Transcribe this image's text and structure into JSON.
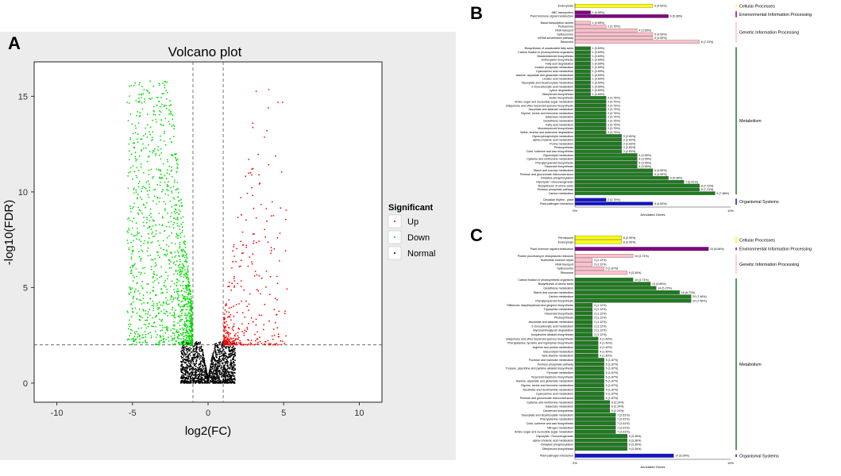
{
  "panels": {
    "a": "A",
    "b": "B",
    "c": "C"
  },
  "chart_data": [
    {
      "type": "scatter",
      "panel": "A",
      "title": "Volcano plot",
      "xlabel": "log2(FC)",
      "ylabel": "-log10(FDR)",
      "xlim": [
        -11.5,
        11.5
      ],
      "ylim": [
        -1,
        16.8
      ],
      "xticks": [
        -10,
        -5,
        0,
        5,
        10
      ],
      "yticks": [
        0,
        5,
        10,
        15
      ],
      "vlines": [
        -1,
        1
      ],
      "hline": 2,
      "legend": {
        "title": "Significant",
        "placement": "right",
        "items": [
          {
            "label": "Up",
            "color": "#ff0000"
          },
          {
            "label": "Down",
            "color": "#00dd00"
          },
          {
            "label": "Normal",
            "color": "#000000"
          }
        ]
      }
    },
    {
      "type": "bar",
      "panel": "B",
      "orientation": "horizontal",
      "xlabel": "Annotated Genes",
      "xticks": [
        "0%",
        "10%"
      ],
      "xmax": 10,
      "groups": [
        {
          "name": "Cellular Processes",
          "color": "#ffff00",
          "bars": [
            {
              "label": "Endocytosis",
              "value": 5,
              "text": "5 (4.59%)"
            }
          ]
        },
        {
          "name": "Environmental Information Processing",
          "color": "#800080",
          "bars": [
            {
              "label": "ABC transporters",
              "value": 1,
              "text": "1 (0.69%)"
            },
            {
              "label": "Plant hormone signal transduction",
              "value": 6,
              "text": "6 (5.38%)"
            }
          ]
        },
        {
          "name": "Genetic Information Processing",
          "color": "#ffc0cb",
          "bars": [
            {
              "label": "Basal transcription factors",
              "value": 1,
              "text": "1 (0.69%)"
            },
            {
              "label": "Proteasome",
              "value": 2,
              "text": "2 (0.75%)"
            },
            {
              "label": "RNA transport",
              "value": 4,
              "text": "4 (3.55%)"
            },
            {
              "label": "Spliceosome",
              "value": 5,
              "text": "5 (4.59%)"
            },
            {
              "label": "mRNA surveillance pathway",
              "value": 5,
              "text": "5 (4.59%)"
            },
            {
              "label": "Ribosome",
              "value": 8,
              "text": "8 (7.23%)"
            }
          ]
        },
        {
          "name": "Metabolism",
          "color": "#1e7b1e",
          "bars": [
            {
              "label": "Biosynthesis of unsaturated fatty acids",
              "value": 1,
              "text": "1 (0.69%)"
            },
            {
              "label": "Carbon fixation in photosynthetic organisms",
              "value": 1,
              "text": "1 (0.69%)"
            },
            {
              "label": "Brassinosteroid biosynthesis",
              "value": 1,
              "text": "1 (0.69%)"
            },
            {
              "label": "Anthocyanin biosynthesis",
              "value": 1,
              "text": "1 (0.69%)"
            },
            {
              "label": "Fatty acid degradation",
              "value": 1,
              "text": "1 (0.69%)"
            },
            {
              "label": "Inositol phosphate metabolism",
              "value": 1,
              "text": "1 (0.69%)"
            },
            {
              "label": "Cyanoamino acid metabolism",
              "value": 1,
              "text": "1 (0.69%)"
            },
            {
              "label": "Alanine, aspartate and glutamate metabolism",
              "value": 1,
              "text": "1 (0.69%)"
            },
            {
              "label": "Linoleic acid metabolism",
              "value": 1,
              "text": "1 (0.69%)"
            },
            {
              "label": "Glyoxylate and dicarboxylate metabolism",
              "value": 1,
              "text": "1 (0.69%)"
            },
            {
              "label": "2-Oxocarboxylic acid metabolism",
              "value": 1,
              "text": "1 (0.69%)"
            },
            {
              "label": "Lysine degradation",
              "value": 1,
              "text": "1 (0.69%)"
            },
            {
              "label": "Diterpenoid biosynthesis",
              "value": 1,
              "text": "1 (0.69%)"
            },
            {
              "label": "Zeatin biosynthesis",
              "value": 2,
              "text": "2 (0.75%)"
            },
            {
              "label": "Amino sugar and nucleotide sugar metabolism",
              "value": 2,
              "text": "2 (0.75%)"
            },
            {
              "label": "Ubiquinone and other terpenoid-quinone biosynthesis",
              "value": 2,
              "text": "2 (0.75%)"
            },
            {
              "label": "Ascorbate and aldarate metabolism",
              "value": 2,
              "text": "2 (0.75%)"
            },
            {
              "label": "Glycine, serine and threonine metabolism",
              "value": 2,
              "text": "2 (0.75%)"
            },
            {
              "label": "Galactose metabolism",
              "value": 2,
              "text": "2 (0.75%)"
            },
            {
              "label": "Glutathione metabolism",
              "value": 2,
              "text": "2 (0.75%)"
            },
            {
              "label": "Fatty acid metabolism",
              "value": 2,
              "text": "2 (0.75%)"
            },
            {
              "label": "Monoterpenoid biosynthesis",
              "value": 2,
              "text": "2 (0.75%)"
            },
            {
              "label": "Valine, leucine and isoleucine degradation",
              "value": 2,
              "text": "2 (0.75%)"
            },
            {
              "label": "Glycerophospholipid metabolism",
              "value": 3,
              "text": "3 (2.83%)"
            },
            {
              "label": "alpha-Linolenic acid metabolism",
              "value": 3,
              "text": "3 (2.83%)"
            },
            {
              "label": "Purine metabolism",
              "value": 3,
              "text": "3 (2.83%)"
            },
            {
              "label": "Photosynthesis",
              "value": 3,
              "text": "3 (2.83%)"
            },
            {
              "label": "Cutin, suberine and wax biosynthesis",
              "value": 3,
              "text": "3 (2.83%)"
            },
            {
              "label": "Glycerolipid metabolism",
              "value": 4,
              "text": "4 (3.55%)"
            },
            {
              "label": "Cysteine and methionine metabolism",
              "value": 4,
              "text": "4 (3.55%)"
            },
            {
              "label": "Phenylpropanoid biosynthesis",
              "value": 4,
              "text": "4 (3.55%)"
            },
            {
              "label": "Flavonoid biosynthesis",
              "value": 4,
              "text": "4 (3.55%)"
            },
            {
              "label": "Starch and sucrose metabolism",
              "value": 5,
              "text": "5 (4.59%)"
            },
            {
              "label": "Pentose and glucuronate interconversions",
              "value": 5,
              "text": "5 (4.59%)"
            },
            {
              "label": "Oxidative phosphorylation",
              "value": 6,
              "text": "6 (5.38%)"
            },
            {
              "label": "Glycolysis / Gluconeogenesis",
              "value": 7,
              "text": "7 (6.41%)"
            },
            {
              "label": "Biosynthesis of amino acids",
              "value": 8,
              "text": "8 (7.23%)"
            },
            {
              "label": "Pentose phosphate pathway",
              "value": 8,
              "text": "8 (7.23%)"
            },
            {
              "label": "Carbon metabolism",
              "value": 9,
              "text": "9 (7.88%)"
            }
          ]
        },
        {
          "name": "Organismal Systems",
          "color": "#1414c8",
          "bars": [
            {
              "label": "Circadian rhythm - plant",
              "value": 2,
              "text": "2 (0.75%)"
            },
            {
              "label": "Plant-pathogen interaction",
              "value": 5,
              "text": "5 (4.59%)"
            }
          ]
        }
      ]
    },
    {
      "type": "bar",
      "panel": "C",
      "orientation": "horizontal",
      "xlabel": "Annotated Genes",
      "xticks": [
        "0%",
        "10%"
      ],
      "xmax": 10,
      "groups": [
        {
          "name": "Cellular Processes",
          "color": "#ffff00",
          "bars": [
            {
              "label": "Peroxisome",
              "value": 3,
              "text": "8 (2.99%)"
            },
            {
              "label": "Endocytosis",
              "value": 3,
              "text": "8 (2.99%)"
            }
          ]
        },
        {
          "name": "Environmental Information Processing",
          "color": "#800080",
          "bars": [
            {
              "label": "Plant hormone signal transduction",
              "value": 8.58,
              "text": "23 (8.58%)"
            }
          ]
        },
        {
          "name": "Genetic Information Processing",
          "color": "#ffc0cb",
          "bars": [
            {
              "label": "Protein processing in endoplasmic reticulum",
              "value": 3.73,
              "text": "10 (3.73%)"
            },
            {
              "label": "Nucleotide excision repair",
              "value": 1.12,
              "text": "3 (1.12%)"
            },
            {
              "label": "RNA transport",
              "value": 1.12,
              "text": "3 (1.12%)"
            },
            {
              "label": "Spliceosome",
              "value": 1.87,
              "text": "5 (1.87%)"
            },
            {
              "label": "Ribosome",
              "value": 3.36,
              "text": "9 (3.36%)"
            }
          ]
        },
        {
          "name": "Metabolism",
          "color": "#1e7b1e",
          "bars": [
            {
              "label": "Carbon fixation in photosynthetic organisms",
              "value": 3.73,
              "text": "10 (3.73%)"
            },
            {
              "label": "Biosynthesis of amino acids",
              "value": 4.85,
              "text": "13 (4.85%)"
            },
            {
              "label": "Glutathione metabolism",
              "value": 5.22,
              "text": "14 (5.22%)"
            },
            {
              "label": "Starch and sucrose metabolism",
              "value": 6.72,
              "text": "18 (6.72%)"
            },
            {
              "label": "Carbon metabolism",
              "value": 7.46,
              "text": "20 (7.46%)"
            },
            {
              "label": "Phenylpropanoid biosynthesis",
              "value": 7.46,
              "text": "20 (7.46%)"
            },
            {
              "label": "Stilbenoid, diarylheptanoid and gingerol biosynthesis",
              "value": 1.12,
              "text": "3 (1.12%)"
            },
            {
              "label": "Tryptophan metabolism",
              "value": 1.12,
              "text": "3 (1.12%)"
            },
            {
              "label": "Flavonoid biosynthesis",
              "value": 1.12,
              "text": "3 (1.12%)"
            },
            {
              "label": "Photosynthesis",
              "value": 1.12,
              "text": "3 (1.12%)"
            },
            {
              "label": "Ascorbate and aldarate metabolism",
              "value": 1.12,
              "text": "3 (1.12%)"
            },
            {
              "label": "2-Oxocarboxylic acid metabolism",
              "value": 1.12,
              "text": "3 (1.12%)"
            },
            {
              "label": "Glycosaminoglycan degradation",
              "value": 1.12,
              "text": "3 (1.12%)"
            },
            {
              "label": "Isoquinoline alkaloid biosynthesis",
              "value": 1.12,
              "text": "3 (1.12%)"
            },
            {
              "label": "Ubiquinone and other terpenoid-quinone biosynthesis",
              "value": 1.49,
              "text": "4 (1.49%)"
            },
            {
              "label": "Phenylalanine, tyrosine and tryptophan biosynthesis",
              "value": 1.49,
              "text": "4 (1.49%)"
            },
            {
              "label": "Arginine and proline metabolism",
              "value": 1.49,
              "text": "4 (1.49%)"
            },
            {
              "label": "Glycerolipid metabolism",
              "value": 1.49,
              "text": "4 (1.49%)"
            },
            {
              "label": "beta-Alanine metabolism",
              "value": 1.49,
              "text": "4 (1.49%)"
            },
            {
              "label": "Fructose and mannose metabolism",
              "value": 1.87,
              "text": "5 (1.87%)"
            },
            {
              "label": "Pentose phosphate pathway",
              "value": 1.87,
              "text": "5 (1.87%)"
            },
            {
              "label": "Tropane, piperidine and pyridine alkaloid biosynthesis",
              "value": 1.87,
              "text": "5 (1.87%)"
            },
            {
              "label": "Pyruvate metabolism",
              "value": 1.87,
              "text": "5 (1.87%)"
            },
            {
              "label": "Terpenoid backbone biosynthesis",
              "value": 1.87,
              "text": "5 (1.87%)"
            },
            {
              "label": "Alanine, aspartate and glutamate metabolism",
              "value": 1.87,
              "text": "5 (1.87%)"
            },
            {
              "label": "Glycine, serine and threonine metabolism",
              "value": 1.87,
              "text": "5 (1.87%)"
            },
            {
              "label": "Nicotinate and nicotinamide metabolism",
              "value": 1.87,
              "text": "5 (1.87%)"
            },
            {
              "label": "Cyanoamino acid metabolism",
              "value": 1.87,
              "text": "5 (1.87%)"
            },
            {
              "label": "Pentose and glucuronate interconversions",
              "value": 1.87,
              "text": "5 (1.87%)"
            },
            {
              "label": "Cysteine and methionine metabolism",
              "value": 2.24,
              "text": "6 (2.24%)"
            },
            {
              "label": "Galactose metabolism",
              "value": 2.24,
              "text": "6 (2.24%)"
            },
            {
              "label": "Carotenoid biosynthesis",
              "value": 2.24,
              "text": "6 (2.24%)"
            },
            {
              "label": "Glyoxylate and dicarboxylate metabolism",
              "value": 2.61,
              "text": "7 (2.61%)"
            },
            {
              "label": "Phenylalanine metabolism",
              "value": 2.61,
              "text": "7 (2.61%)"
            },
            {
              "label": "Cutin, suberine and wax biosynthesis",
              "value": 2.61,
              "text": "7 (2.61%)"
            },
            {
              "label": "Nitrogen metabolism",
              "value": 2.61,
              "text": "7 (2.61%)"
            },
            {
              "label": "Amino sugar and nucleotide sugar metabolism",
              "value": 2.61,
              "text": "7 (2.61%)"
            },
            {
              "label": "Glycolysis / Gluconeogenesis",
              "value": 3.36,
              "text": "9 (3.36%)"
            },
            {
              "label": "alpha-Linolenic acid metabolism",
              "value": 3.36,
              "text": "9 (3.36%)"
            },
            {
              "label": "Oxidative phosphorylation",
              "value": 3.36,
              "text": "9 (3.36%)"
            },
            {
              "label": "Diterpenoid biosynthesis",
              "value": 3.36,
              "text": "9 (3.36%)"
            }
          ]
        },
        {
          "name": "Organismal Systems",
          "color": "#1414c8",
          "bars": [
            {
              "label": "Plant-pathogen interaction",
              "value": 6.34,
              "text": "17 (6.34%)"
            }
          ]
        }
      ]
    }
  ]
}
